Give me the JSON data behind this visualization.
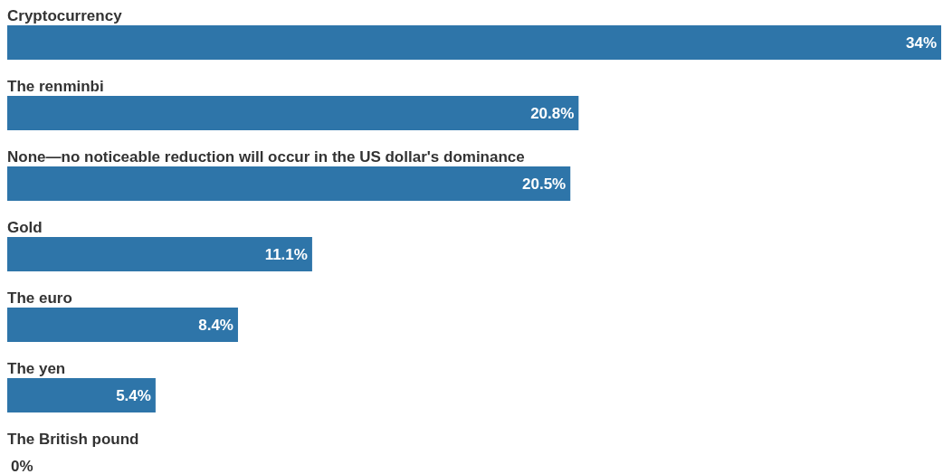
{
  "chart_data": {
    "type": "bar",
    "orientation": "horizontal",
    "categories": [
      "Cryptocurrency",
      "The renminbi",
      "None—no noticeable reduction will occur in the US dollar's dominance",
      "Gold",
      "The euro",
      "The yen",
      "The British pound"
    ],
    "values": [
      34,
      20.8,
      20.5,
      11.1,
      8.4,
      5.4,
      0
    ],
    "color": "#2e75a9",
    "value_labels": [
      "34%",
      "20.8%",
      "20.5%",
      "11.1%",
      "8.4%",
      "5.4%",
      "0%"
    ]
  }
}
